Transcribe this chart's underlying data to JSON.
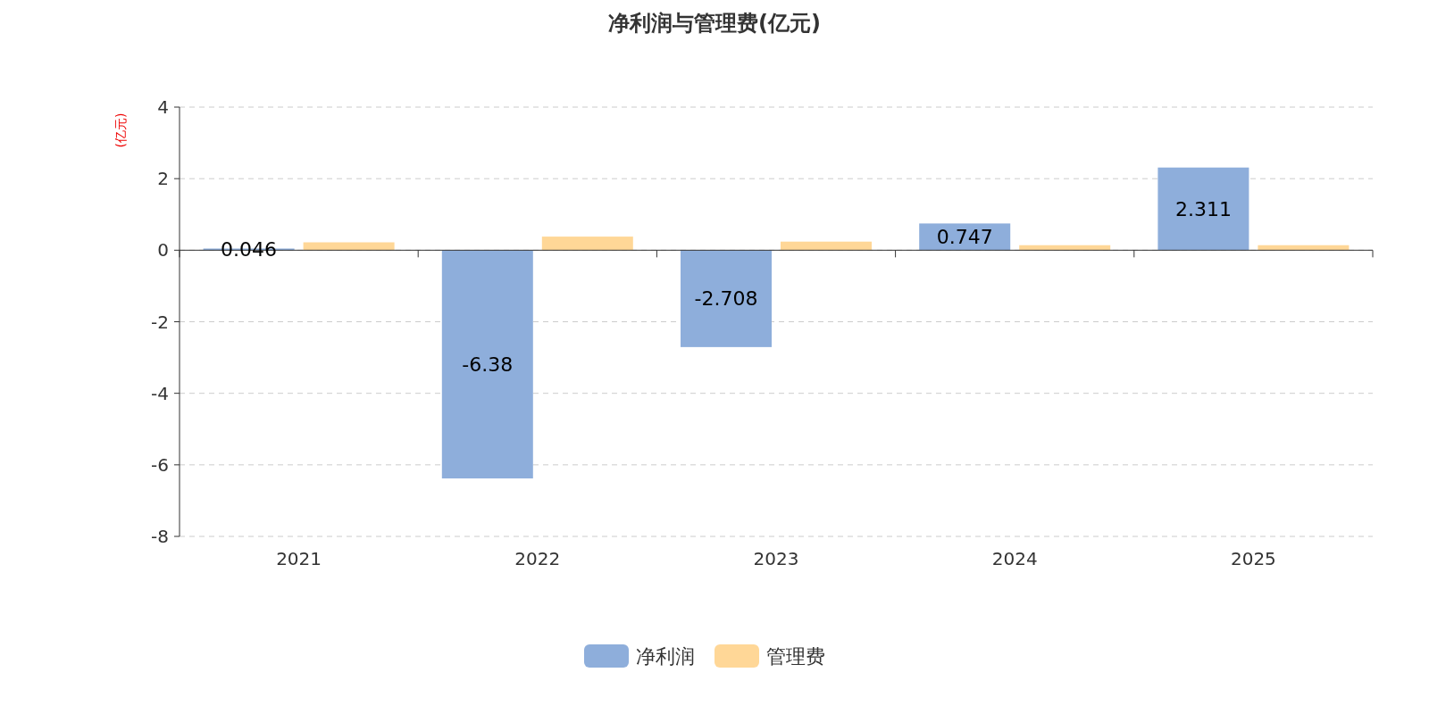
{
  "chart_data": {
    "type": "bar",
    "title": "净利润与管理费(亿元)",
    "ylabel": "(亿元)",
    "categories": [
      "2021",
      "2022",
      "2023",
      "2024",
      "2025"
    ],
    "series": [
      {
        "name": "净利润",
        "color": "#8eaedb",
        "values": [
          0.046,
          -6.38,
          -2.708,
          0.747,
          2.311
        ],
        "value_labels": [
          "0.046",
          "-6.38",
          "-2.708",
          "0.747",
          "2.311"
        ]
      },
      {
        "name": "管理费",
        "color": "#ffd797",
        "values": [
          0.22,
          0.38,
          0.24,
          0.14,
          0.14
        ]
      }
    ],
    "ylim": [
      -8,
      4
    ],
    "yticks": [
      -8,
      -6,
      -4,
      -2,
      0,
      2,
      4
    ],
    "grid": "y",
    "legend": "bottom"
  }
}
